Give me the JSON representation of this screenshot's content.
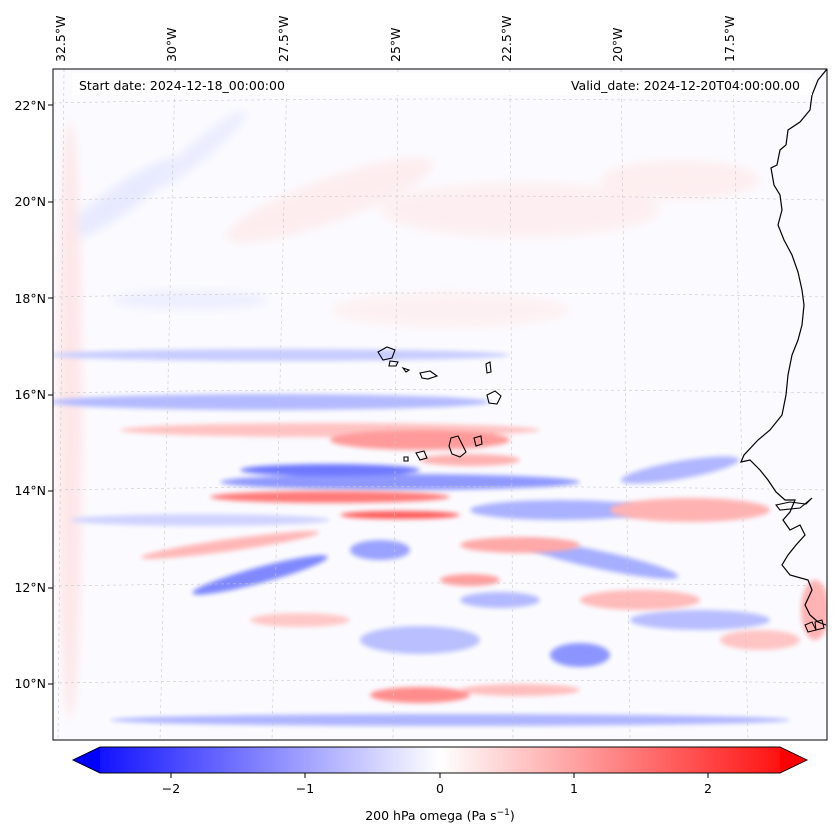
{
  "map": {
    "start_date_text": "Start date: 2024-12-18_00:00:00",
    "valid_date_text": "Valid_date: 2024-12-20T04:00:00.00",
    "longitude_labels": [
      "32.5°W",
      "30°W",
      "27.5°W",
      "25°W",
      "22.5°W",
      "20°W",
      "17.5°W"
    ],
    "latitude_labels": [
      "22°N",
      "20°N",
      "18°N",
      "16°N",
      "14°N",
      "12°N",
      "10°N"
    ],
    "field": "200 hPa omega",
    "colors": {
      "negative": "#0000ff",
      "zero": "#ffffff",
      "positive": "#ff0000",
      "coast": "#000000"
    }
  },
  "colorbar": {
    "label_main": "200 hPa omega (Pa s",
    "label_sup": "−1",
    "label_end": ")",
    "tick_labels": [
      "−2",
      "−1",
      "0",
      "1",
      "2"
    ],
    "min": -2.7,
    "max": 2.7
  }
}
